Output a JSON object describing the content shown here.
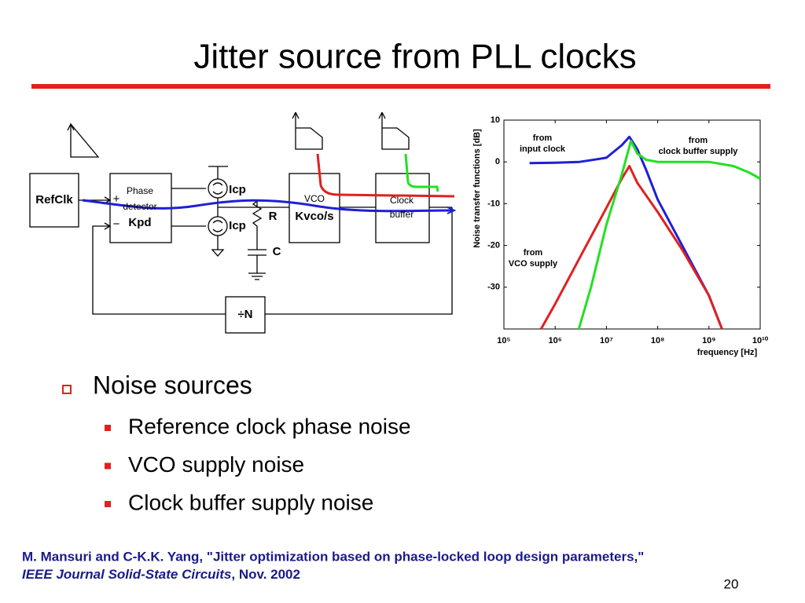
{
  "header": {
    "title": "Jitter source from PLL clocks"
  },
  "diagram": {
    "refclk": "RefClk",
    "pd_line1": "Phase",
    "pd_line2": "detector",
    "pd_gain": "Kpd",
    "plus": "+",
    "minus": "−",
    "icp_top": "Icp",
    "icp_bottom": "Icp",
    "resistor": "R",
    "capacitor": "C",
    "vco": "VCO",
    "vco_gain": "Kvco/s",
    "buffer_line1": "Clock",
    "buffer_line2": "buffer",
    "divider": "÷N"
  },
  "chart_data": {
    "type": "line",
    "y_label": "Noise transfer functions [dB]",
    "x_label": "frequency [Hz]",
    "x_scale": "log",
    "grid": false,
    "xlim": [
      100000,
      10000000000
    ],
    "xticks": [
      {
        "value": 100000,
        "label": "10⁵"
      },
      {
        "value": 1000000,
        "label": "10⁶"
      },
      {
        "value": 10000000,
        "label": "10⁷"
      },
      {
        "value": 100000000,
        "label": "10⁸"
      },
      {
        "value": 1000000000,
        "label": "10⁹"
      },
      {
        "value": 10000000000,
        "label": "10¹⁰"
      }
    ],
    "ylim": [
      -40,
      10
    ],
    "yticks": [
      -30,
      -20,
      -10,
      0,
      10
    ],
    "series": [
      {
        "name": "from input clock",
        "color": "#1f1fd6",
        "x": [
          316000,
          1000000,
          3000000,
          10000000,
          20000000,
          28000000,
          40000000,
          60000000,
          100000000,
          300000000,
          1000000000,
          1800000000
        ],
        "values": [
          -0.3,
          -0.2,
          0,
          1,
          4,
          6,
          3,
          -2,
          -9,
          -20,
          -32,
          -40
        ]
      },
      {
        "name": "from VCO supply",
        "color": "#e02020",
        "x": [
          530000,
          1000000,
          3000000,
          10000000,
          20000000,
          28000000,
          40000000,
          100000000,
          300000000,
          1000000000,
          1800000000
        ],
        "values": [
          -40,
          -34,
          -23,
          -11,
          -4,
          -1,
          -5,
          -12,
          -21,
          -32,
          -40
        ]
      },
      {
        "name": "from clock buffer supply",
        "color": "#22e022",
        "x": [
          2900000,
          5000000,
          10000000,
          20000000,
          30000000,
          40000000,
          60000000,
          100000000,
          1000000000,
          3000000000,
          6000000000,
          10000000000
        ],
        "values": [
          -40,
          -30,
          -15,
          -3,
          5,
          2,
          0.5,
          0,
          0,
          -1,
          -2.5,
          -4
        ]
      }
    ],
    "annotations": [
      [
        "from",
        "input clock"
      ],
      [
        "from",
        "VCO supply"
      ],
      [
        "from",
        "clock buffer supply"
      ]
    ]
  },
  "bullets": {
    "main": "Noise sources",
    "items": [
      "Reference clock phase noise",
      "VCO supply noise",
      "Clock buffer supply noise"
    ]
  },
  "footer": {
    "citation_line1": "M. Mansuri and C-K.K. Yang, \"Jitter optimization based on phase-locked loop design parameters,\"",
    "journal": "IEEE Journal Solid-State Circuits",
    "citation_end": ", Nov. 2002",
    "page_number": "20"
  }
}
